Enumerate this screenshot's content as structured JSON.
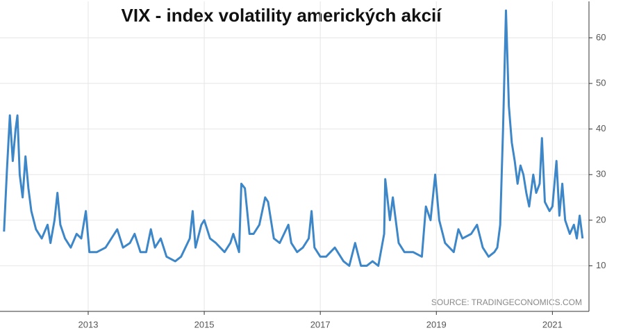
{
  "chart_data": {
    "type": "line",
    "title": "VIX - index volatility amerických akcií",
    "source": "SOURCE: TRADINGECONOMICS.COM",
    "x": [
      2011.55,
      2011.6,
      2011.65,
      2011.7,
      2011.75,
      2011.78,
      2011.82,
      2011.87,
      2011.92,
      2011.97,
      2012.02,
      2012.1,
      2012.2,
      2012.3,
      2012.35,
      2012.42,
      2012.47,
      2012.52,
      2012.6,
      2012.7,
      2012.8,
      2012.88,
      2012.96,
      2013.02,
      2013.15,
      2013.3,
      2013.45,
      2013.5,
      2013.6,
      2013.72,
      2013.8,
      2013.9,
      2014.0,
      2014.08,
      2014.15,
      2014.25,
      2014.35,
      2014.5,
      2014.6,
      2014.75,
      2014.8,
      2014.85,
      2014.95,
      2015.0,
      2015.1,
      2015.2,
      2015.35,
      2015.45,
      2015.5,
      2015.6,
      2015.64,
      2015.7,
      2015.78,
      2015.85,
      2015.95,
      2016.05,
      2016.1,
      2016.2,
      2016.3,
      2016.45,
      2016.5,
      2016.6,
      2016.7,
      2016.8,
      2016.85,
      2016.9,
      2017.0,
      2017.1,
      2017.25,
      2017.4,
      2017.5,
      2017.6,
      2017.7,
      2017.8,
      2017.9,
      2018.0,
      2018.1,
      2018.12,
      2018.2,
      2018.25,
      2018.35,
      2018.45,
      2018.6,
      2018.75,
      2018.82,
      2018.9,
      2018.98,
      2019.05,
      2019.15,
      2019.3,
      2019.38,
      2019.45,
      2019.6,
      2019.7,
      2019.8,
      2019.9,
      2020.0,
      2020.05,
      2020.1,
      2020.15,
      2020.2,
      2020.25,
      2020.3,
      2020.35,
      2020.4,
      2020.45,
      2020.5,
      2020.55,
      2020.6,
      2020.67,
      2020.72,
      2020.78,
      2020.82,
      2020.87,
      2020.95,
      2021.0,
      2021.07,
      2021.12,
      2021.17,
      2021.22,
      2021.3,
      2021.37,
      2021.42,
      2021.47,
      2021.52
    ],
    "series": [
      {
        "name": "VIX",
        "color": "#3d87c8",
        "values": [
          17.5,
          31,
          43,
          33,
          40,
          43,
          30,
          25,
          34,
          27,
          22,
          18,
          16,
          19,
          15,
          20,
          26,
          19,
          16,
          14,
          17,
          16,
          22,
          13,
          13,
          14,
          17,
          18,
          14,
          15,
          17,
          13,
          13,
          18,
          14,
          16,
          12,
          11,
          12,
          16,
          22,
          14,
          19,
          20,
          16,
          15,
          13,
          15,
          17,
          13,
          28,
          27,
          17,
          17,
          19,
          25,
          24,
          16,
          15,
          19,
          15,
          13,
          14,
          16,
          22,
          14,
          12,
          12,
          14,
          11,
          10,
          15,
          10,
          10,
          11,
          10,
          17,
          29,
          20,
          25,
          15,
          13,
          13,
          12,
          23,
          20,
          30,
          20,
          15,
          13,
          18,
          16,
          17,
          19,
          14,
          12,
          13,
          14,
          19,
          40,
          66,
          45,
          37,
          33,
          28,
          32,
          30,
          26,
          23,
          30,
          26,
          28,
          38,
          24,
          22,
          23,
          33,
          21,
          28,
          20,
          17,
          19,
          16,
          21,
          16
        ]
      }
    ],
    "xlim": [
      2011.54,
      2021.63
    ],
    "xticks": [
      2013,
      2015,
      2017,
      2019,
      2021
    ],
    "ylim": [
      0,
      68
    ],
    "yticks": [
      10,
      20,
      30,
      40,
      50,
      60
    ],
    "grid": true
  }
}
